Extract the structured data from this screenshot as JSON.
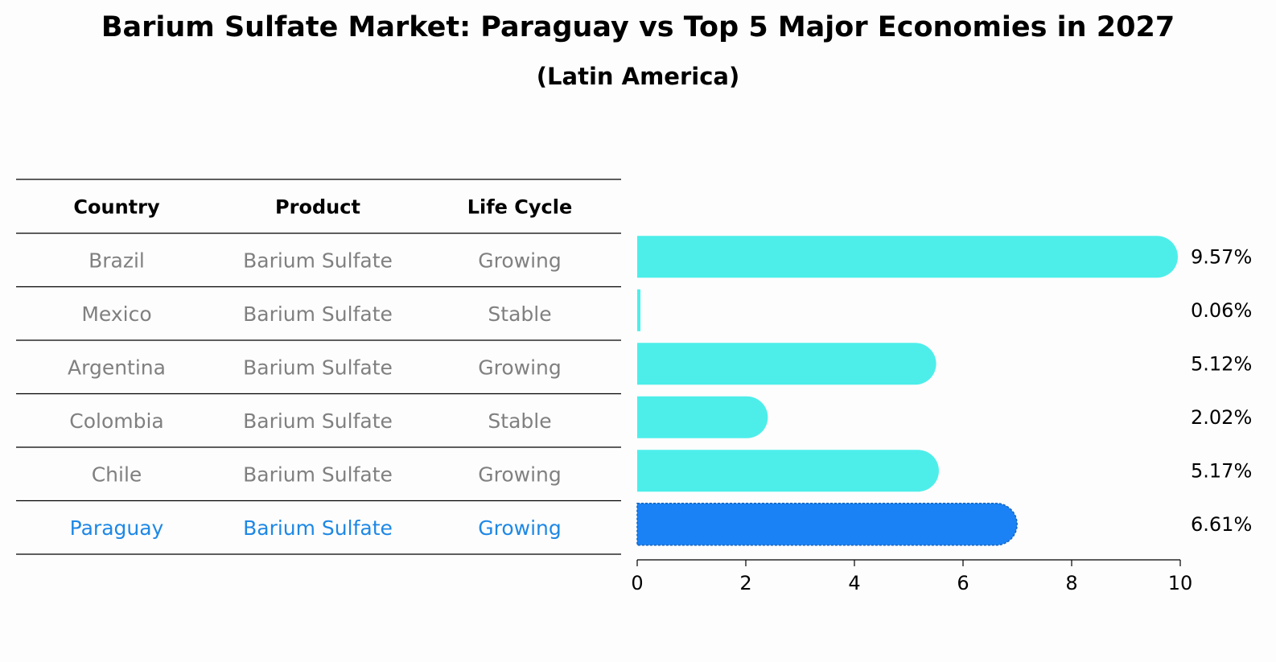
{
  "title": "Barium Sulfate Market: Paraguay vs Top 5 Major Economies in 2027",
  "subtitle": "(Latin America)",
  "table": {
    "headers": [
      "Country",
      "Product",
      "Life Cycle"
    ],
    "rows": [
      [
        "Brazil",
        "Barium Sulfate",
        "Growing"
      ],
      [
        "Mexico",
        "Barium Sulfate",
        "Stable"
      ],
      [
        "Argentina",
        "Barium Sulfate",
        "Growing"
      ],
      [
        "Colombia",
        "Barium Sulfate",
        "Stable"
      ],
      [
        "Chile",
        "Barium Sulfate",
        "Growing"
      ],
      [
        "Paraguay",
        "Barium Sulfate",
        "Growing"
      ]
    ],
    "highlight_row": 5
  },
  "colors": {
    "bar": "#4deeea",
    "highlight": "#1a82f5",
    "row_text": "#808080",
    "highlight_text": "#1e88e5"
  },
  "chart_data": {
    "type": "bar",
    "orientation": "horizontal",
    "categories": [
      "Brazil",
      "Mexico",
      "Argentina",
      "Colombia",
      "Chile",
      "Paraguay"
    ],
    "values": [
      9.57,
      0.06,
      5.12,
      2.02,
      5.17,
      6.61
    ],
    "value_labels": [
      "9.57%",
      "0.06%",
      "5.12%",
      "2.02%",
      "5.17%",
      "6.61%"
    ],
    "xlim": [
      0,
      10
    ],
    "xticks": [
      0,
      2,
      4,
      6,
      8,
      10
    ],
    "grid": false
  }
}
